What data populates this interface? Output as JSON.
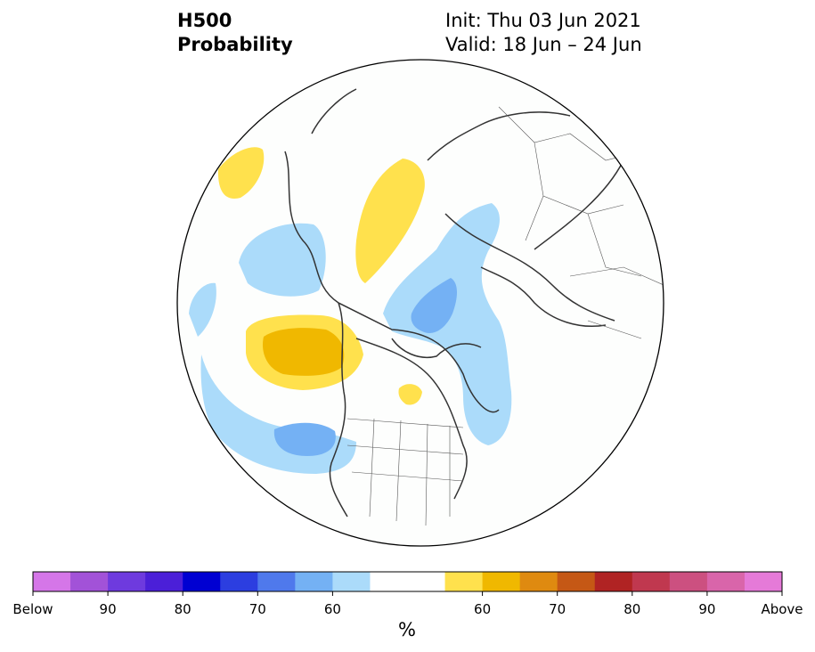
{
  "header": {
    "variable": "H500",
    "product": "Probability",
    "init": "Init: Thu 03 Jun 2021",
    "valid": "Valid: 18 Jun – 24 Jun"
  },
  "colorbar": {
    "unit": "%",
    "colors": [
      "#d576e8",
      "#a252d8",
      "#6e3ade",
      "#4b1fd8",
      "#0000d2",
      "#2c3ee0",
      "#4f79ec",
      "#74b1f4",
      "#abdbfa",
      "#ffffff",
      "#ffffff",
      "#ffe14d",
      "#f0b800",
      "#df8a10",
      "#c55815",
      "#b02323",
      "#c0384f",
      "#cc5080",
      "#d965aa",
      "#e57ad8"
    ],
    "labels": [
      "Below",
      "90",
      "80",
      "70",
      "60",
      "60",
      "70",
      "80",
      "90",
      "Above"
    ]
  }
}
